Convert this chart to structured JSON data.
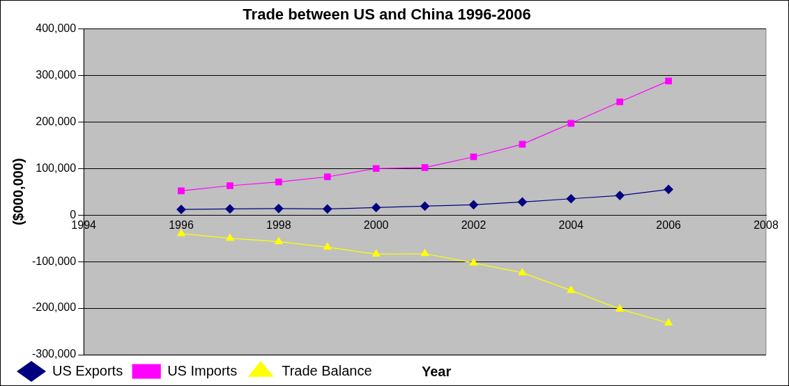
{
  "chart_data": {
    "type": "line",
    "title": "Trade between US and China 1996-2006",
    "xlabel": "Year",
    "ylabel": "($000,000)",
    "x": [
      1996,
      1997,
      1998,
      1999,
      2000,
      2001,
      2002,
      2003,
      2004,
      2005,
      2006
    ],
    "series": [
      {
        "name": "US Exports",
        "color": "#000080",
        "marker": "diamond",
        "values": [
          12000,
          13000,
          14000,
          13000,
          16000,
          19000,
          22000,
          28000,
          35000,
          42000,
          55000
        ]
      },
      {
        "name": "US Imports",
        "color": "#ff00ff",
        "marker": "square",
        "values": [
          52000,
          63000,
          71000,
          82000,
          100000,
          102000,
          125000,
          152000,
          197000,
          243000,
          288000
        ]
      },
      {
        "name": "Trade Balance",
        "color": "#ffff00",
        "marker": "triangle",
        "values": [
          -40000,
          -50000,
          -57000,
          -69000,
          -84000,
          -83000,
          -103000,
          -124000,
          -162000,
          -202000,
          -232000
        ]
      }
    ],
    "xlim": [
      1994,
      2008
    ],
    "xticks": [
      {
        "value": 1994,
        "label": "1994"
      },
      {
        "value": 1996,
        "label": "1996"
      },
      {
        "value": 1998,
        "label": "1998"
      },
      {
        "value": 2000,
        "label": "2000"
      },
      {
        "value": 2002,
        "label": "2002"
      },
      {
        "value": 2004,
        "label": "2004"
      },
      {
        "value": 2006,
        "label": "2006"
      },
      {
        "value": 2008,
        "label": "2008"
      }
    ],
    "ylim": [
      -300000,
      400000
    ],
    "yticks": [
      {
        "value": -300000,
        "label": "-300,000"
      },
      {
        "value": -200000,
        "label": "-200,000"
      },
      {
        "value": -100000,
        "label": "-100,000"
      },
      0,
      {
        "value": 100000,
        "label": "100,000"
      },
      {
        "value": 200000,
        "label": "200,000"
      },
      {
        "value": 300000,
        "label": "300,000"
      },
      {
        "value": 400000,
        "label": "400,000"
      }
    ],
    "grid": "y",
    "legend": "bottom left",
    "line_style": "solid"
  }
}
